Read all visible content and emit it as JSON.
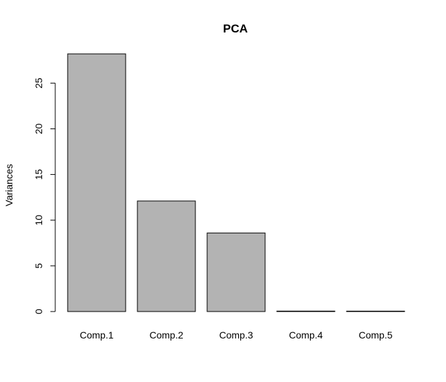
{
  "chart_data": {
    "type": "bar",
    "title": "PCA",
    "xlabel": "",
    "ylabel": "Variances",
    "categories": [
      "Comp.1",
      "Comp.2",
      "Comp.3",
      "Comp.4",
      "Comp.5"
    ],
    "values": [
      28.2,
      12.1,
      8.6,
      0.05,
      0.03
    ],
    "ylim": [
      0,
      28.2
    ],
    "yticks": [
      0,
      5,
      10,
      15,
      20,
      25
    ],
    "grid": false,
    "bar_color": "#b3b3b3",
    "bar_edge_color": "#000000"
  }
}
